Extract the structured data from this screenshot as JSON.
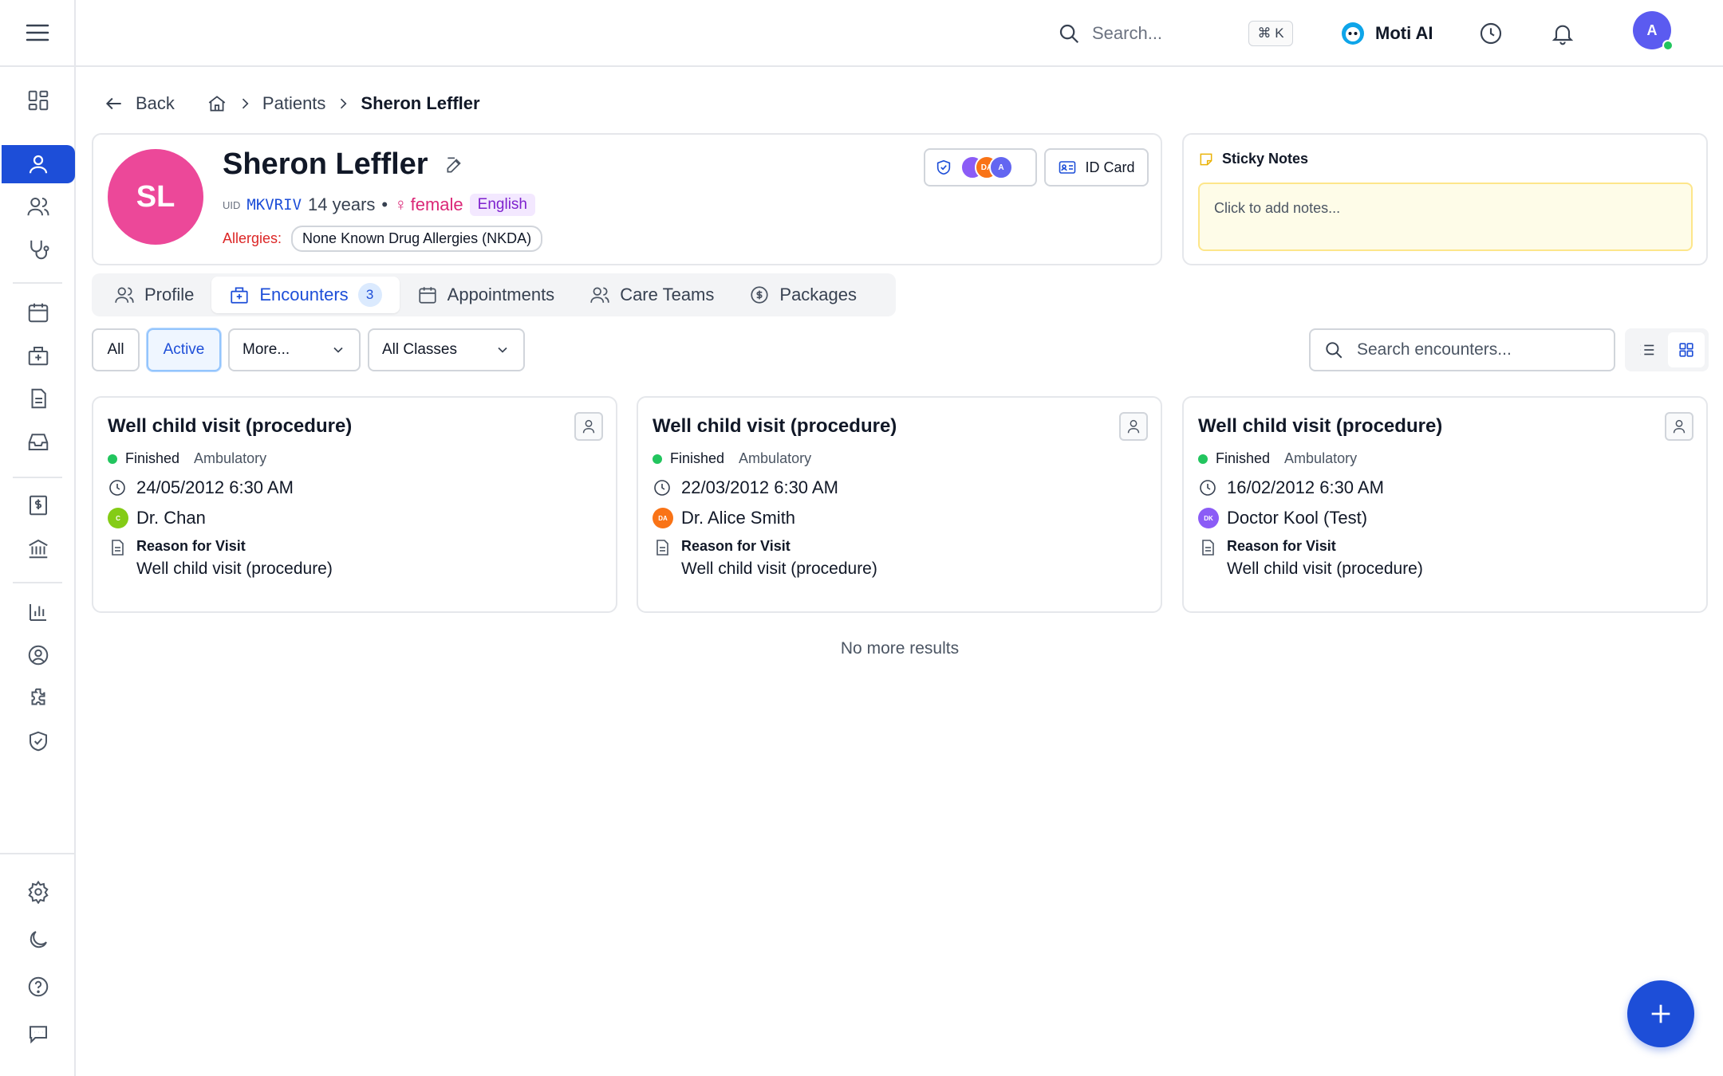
{
  "header": {
    "search_placeholder": "Search...",
    "shortcut": "⌘ K",
    "assistant_name": "Moti AI",
    "user_initial": "A"
  },
  "breadcrumb": {
    "back": "Back",
    "section": "Patients",
    "current": "Sheron Leffler"
  },
  "patient": {
    "initials": "SL",
    "name": "Sheron Leffler",
    "uid_label": "UID",
    "uid": "MKVRIV",
    "age": "14 years",
    "bullet": "•",
    "gender_symbol": "♀",
    "gender": "female",
    "language": "English",
    "allergies_label": "Allergies:",
    "allergy": "None Known Drug Allergies (NKDA)",
    "team_avatars": [
      "DA",
      "A"
    ],
    "id_card_label": "ID Card"
  },
  "sticky_notes": {
    "title": "Sticky Notes",
    "placeholder": "Click to add notes..."
  },
  "tabs": [
    {
      "label": "Profile",
      "icon": "users-icon"
    },
    {
      "label": "Encounters",
      "icon": "building-icon",
      "count": "3"
    },
    {
      "label": "Appointments",
      "icon": "calendar-icon"
    },
    {
      "label": "Care Teams",
      "icon": "users-icon"
    },
    {
      "label": "Packages",
      "icon": "dollar-circle-icon"
    }
  ],
  "filters": {
    "all": "All",
    "active": "Active",
    "more": "More...",
    "classes": "All Classes",
    "search_placeholder": "Search encounters..."
  },
  "encounters": [
    {
      "title": "Well child visit (procedure)",
      "status": "Finished",
      "class": "Ambulatory",
      "date": "24/05/2012 6:30 AM",
      "doctor_initials": "C",
      "doctor_color": "#84cc16",
      "doctor": "Dr. Chan",
      "reason_label": "Reason for Visit",
      "reason": "Well child visit (procedure)"
    },
    {
      "title": "Well child visit (procedure)",
      "status": "Finished",
      "class": "Ambulatory",
      "date": "22/03/2012 6:30 AM",
      "doctor_initials": "DA",
      "doctor_color": "#f97316",
      "doctor": "Dr. Alice Smith",
      "reason_label": "Reason for Visit",
      "reason": "Well child visit (procedure)"
    },
    {
      "title": "Well child visit (procedure)",
      "status": "Finished",
      "class": "Ambulatory",
      "date": "16/02/2012 6:30 AM",
      "doctor_initials": "DK",
      "doctor_color": "#8b5cf6",
      "doctor": "Doctor Kool (Test)",
      "reason_label": "Reason for Visit",
      "reason": "Well child visit (procedure)"
    }
  ],
  "no_more": "No more results",
  "colors": {
    "primary": "#1d4ed8",
    "avatar_pink": "#ec4899",
    "status_green": "#22c55e"
  }
}
